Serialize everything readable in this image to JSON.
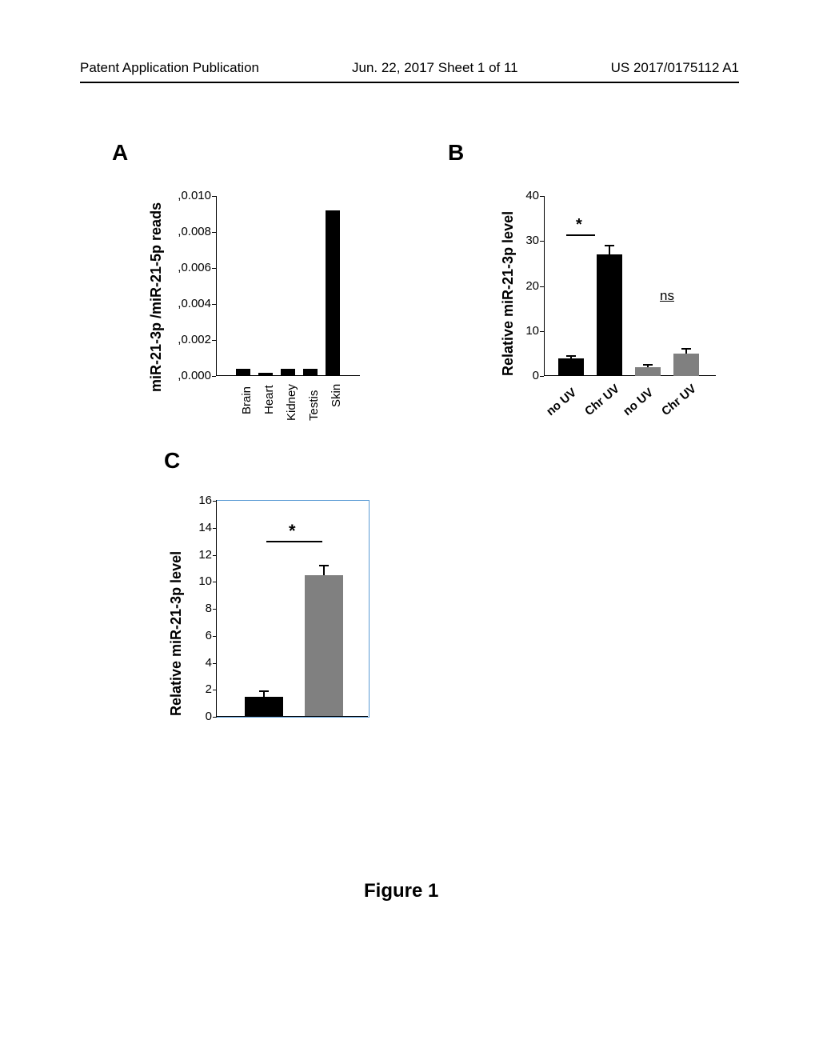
{
  "header": {
    "left": "Patent Application Publication",
    "center": "Jun. 22, 2017  Sheet 1 of 11",
    "right": "US 2017/0175112 A1"
  },
  "panelA": {
    "label": "A",
    "ylabel": "miR-21-3p /miR-21-5p reads",
    "ylabel_fontsize": 18,
    "yticks": [
      ",0.000",
      ",0.002",
      ",0.004",
      ",0.006",
      ",0.008",
      ",0.010"
    ],
    "ytick_values": [
      0,
      0.002,
      0.004,
      0.006,
      0.008,
      0.01
    ],
    "categories": [
      "Brain",
      "Heart",
      "Kidney",
      "Testis",
      "Skin"
    ],
    "values": [
      0.0004,
      0.0002,
      0.0004,
      0.0004,
      0.0092
    ],
    "bar_color": "#000000",
    "tick_fontsize": 15,
    "axis_color": "#000000"
  },
  "panelB": {
    "label": "B",
    "ylabel": "Relative miR-21-3p level",
    "ylabel_fontsize": 18,
    "yticks": [
      "0",
      "10",
      "20",
      "30",
      "40"
    ],
    "ytick_values": [
      0,
      10,
      20,
      30,
      40
    ],
    "categories": [
      "no UV",
      "Chr UV",
      "no UV",
      "Chr UV"
    ],
    "values": [
      4,
      27,
      2,
      5
    ],
    "errors": [
      0.5,
      2,
      0.5,
      1
    ],
    "bar_colors": [
      "#000000",
      "#000000",
      "#808080",
      "#808080"
    ],
    "sig1": "*",
    "sig2": "ns",
    "tick_fontsize": 15
  },
  "panelC": {
    "label": "C",
    "ylabel": "Relative miR-21-3p level",
    "ylabel_fontsize": 18,
    "yticks": [
      "0",
      "2",
      "4",
      "6",
      "8",
      "10",
      "12",
      "14",
      "16"
    ],
    "ytick_values": [
      0,
      2,
      4,
      6,
      8,
      10,
      12,
      14,
      16
    ],
    "values": [
      1.5,
      10.5
    ],
    "errors": [
      0.4,
      0.7
    ],
    "bar_colors": [
      "#000000",
      "#808080"
    ],
    "sig": "*",
    "border_color": "#5b9bd5",
    "tick_fontsize": 15
  },
  "caption": "Figure 1"
}
